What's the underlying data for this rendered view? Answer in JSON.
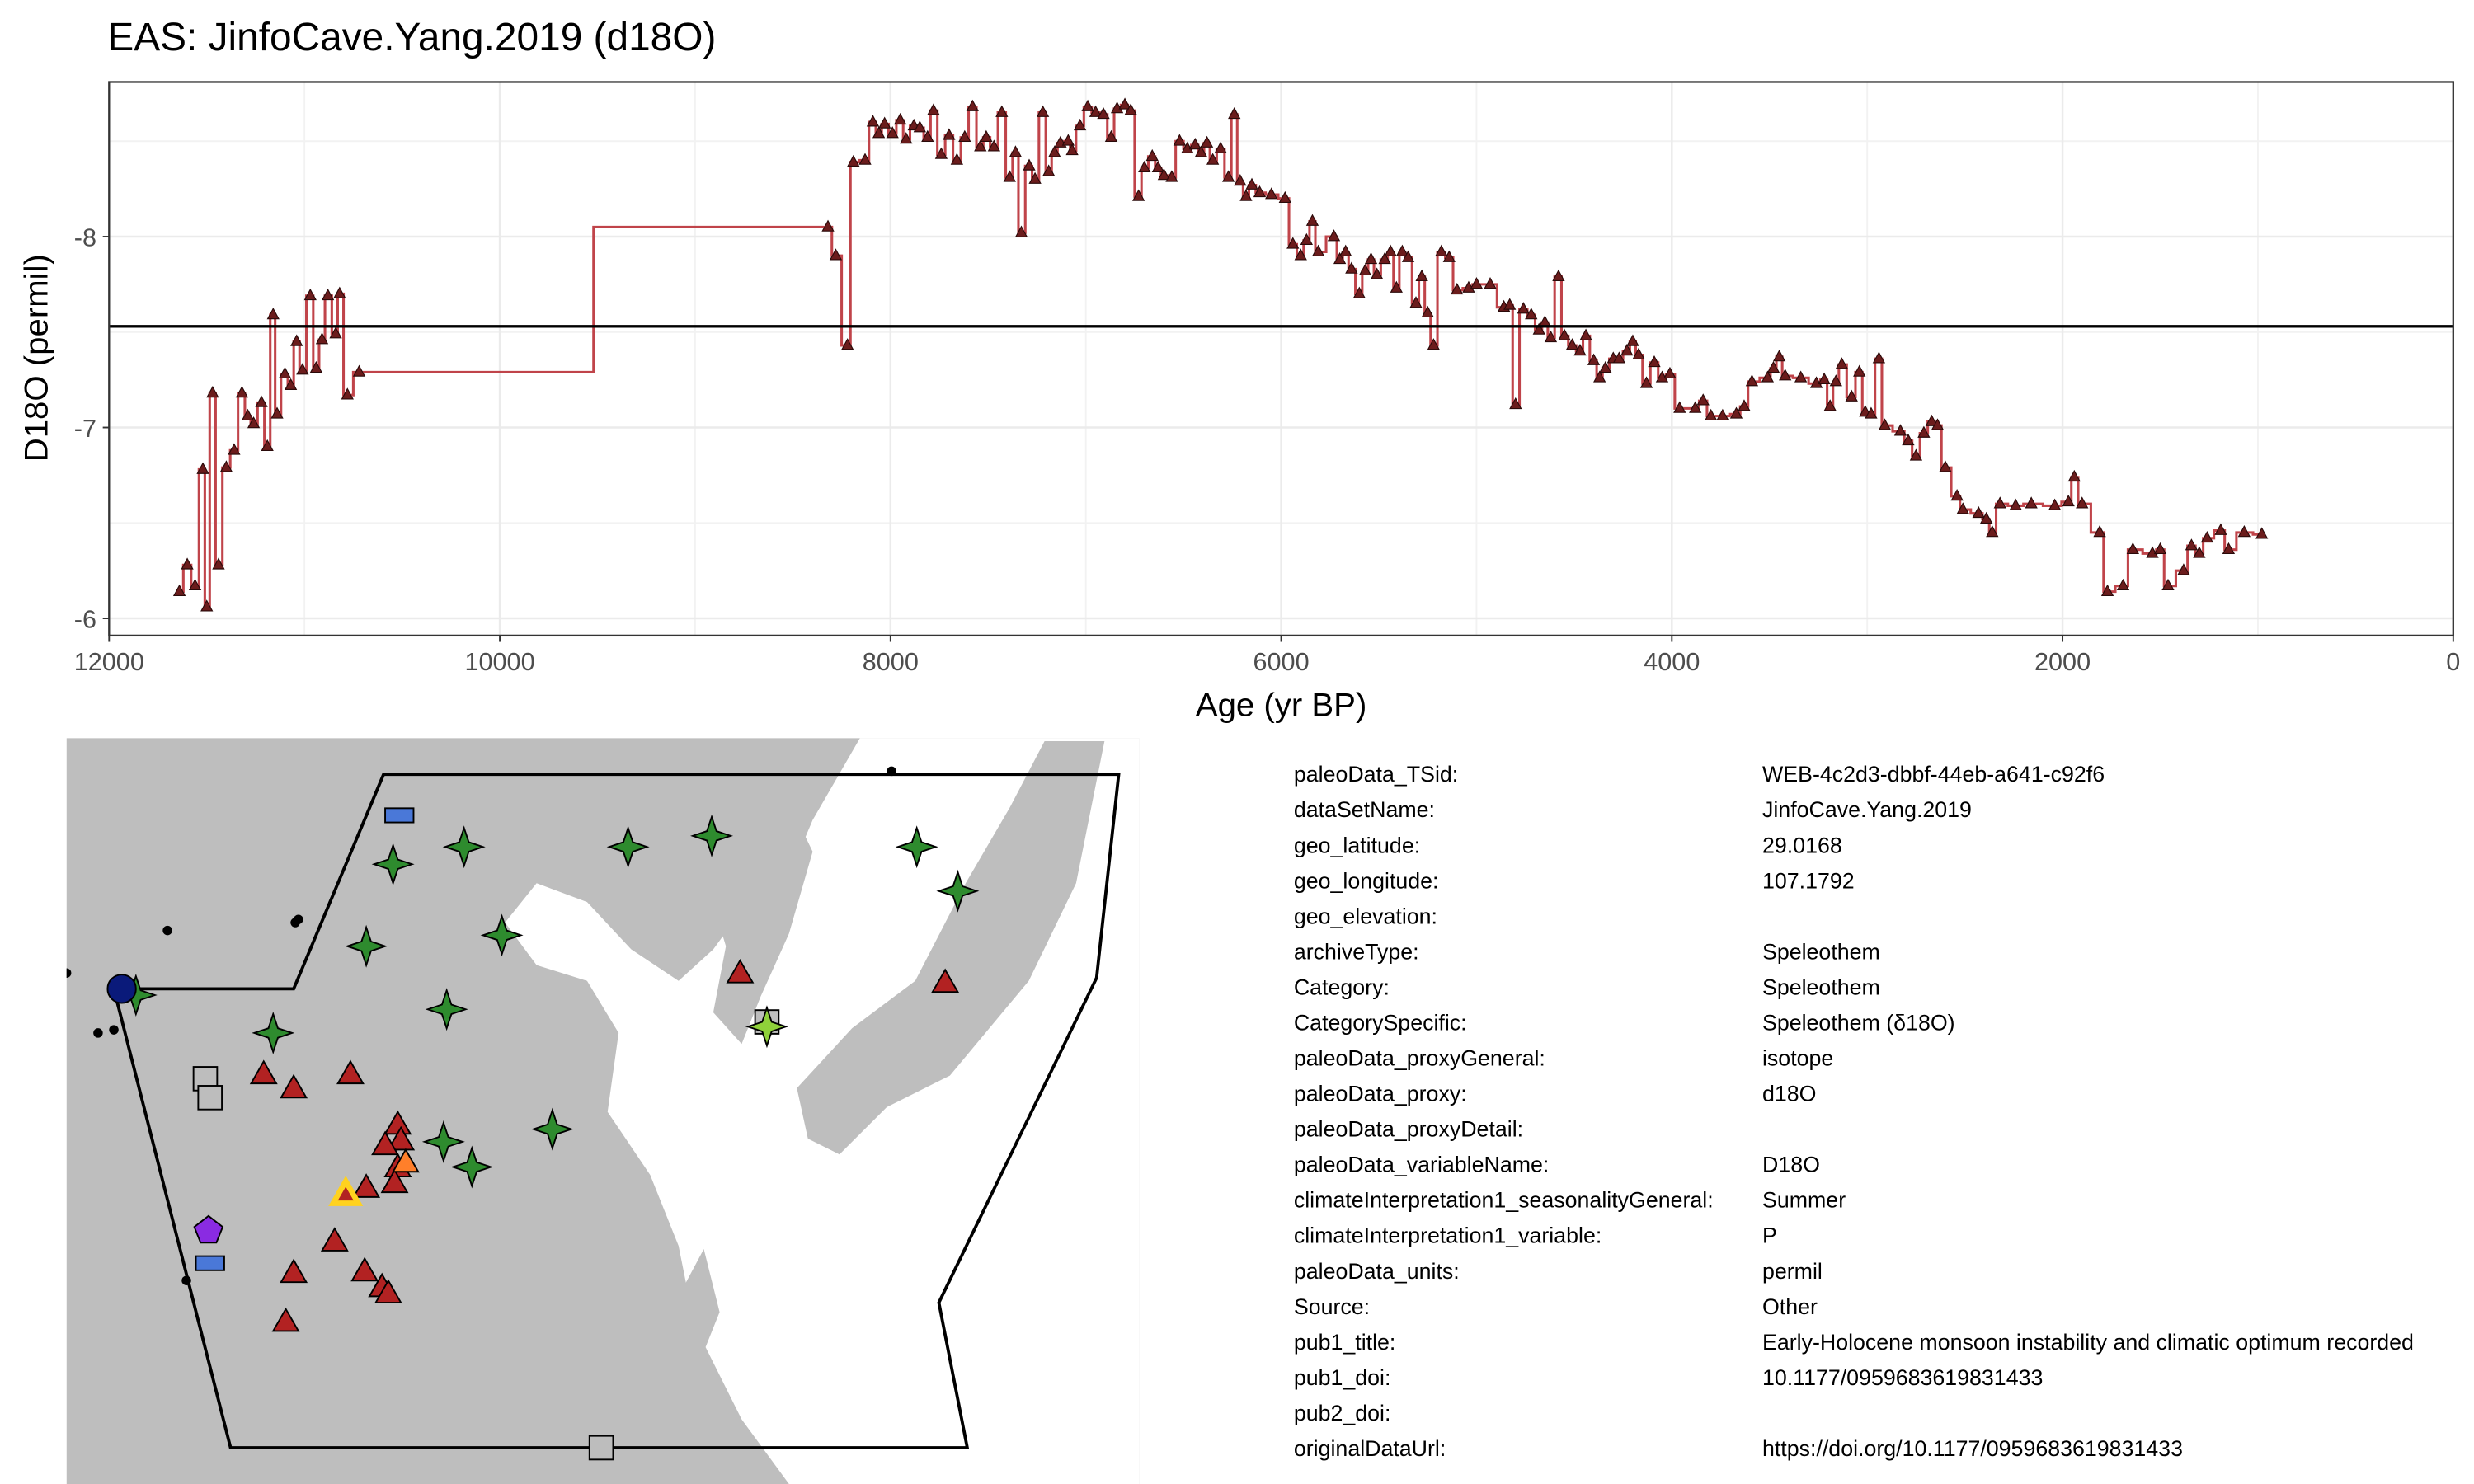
{
  "chart_data": {
    "type": "line",
    "title": "EAS: JinfoCave.Yang.2019 (d18O)",
    "xlabel": "Age (yr BP)",
    "ylabel": "D18O (permil)",
    "color": "#c0444a",
    "marker_color": "#6b1c1c",
    "hline": -7.53,
    "grid": true,
    "xlim": [
      12000,
      0
    ],
    "xticks": [
      12000,
      10000,
      8000,
      6000,
      4000,
      2000,
      0
    ],
    "ylim": [
      -5.91,
      -8.81
    ],
    "yticks": [
      -8,
      -7,
      -6
    ],
    "x": [
      11640,
      11600,
      11560,
      11520,
      11500,
      11470,
      11440,
      11400,
      11360,
      11320,
      11290,
      11260,
      11220,
      11190,
      11160,
      11140,
      11100,
      11070,
      11040,
      11010,
      10970,
      10940,
      10910,
      10880,
      10840,
      10820,
      10780,
      10720,
      8320,
      8280,
      8220,
      8190,
      8130,
      8090,
      8060,
      8030,
      7990,
      7950,
      7920,
      7880,
      7850,
      7810,
      7780,
      7740,
      7700,
      7660,
      7620,
      7580,
      7540,
      7510,
      7470,
      7430,
      7390,
      7360,
      7330,
      7290,
      7260,
      7220,
      7190,
      7160,
      7130,
      7090,
      7070,
      7030,
      6990,
      6950,
      6910,
      6870,
      6840,
      6800,
      6770,
      6730,
      6700,
      6660,
      6630,
      6600,
      6560,
      6520,
      6480,
      6440,
      6410,
      6380,
      6350,
      6310,
      6270,
      6240,
      6210,
      6180,
      6150,
      6110,
      6050,
      5980,
      5940,
      5900,
      5870,
      5840,
      5810,
      5730,
      5700,
      5670,
      5640,
      5600,
      5570,
      5540,
      5510,
      5470,
      5440,
      5410,
      5380,
      5350,
      5310,
      5280,
      5250,
      5220,
      5180,
      5140,
      5100,
      5040,
      5000,
      4930,
      4860,
      4830,
      4800,
      4760,
      4720,
      4680,
      4650,
      4620,
      4580,
      4550,
      4510,
      4470,
      4440,
      4400,
      4370,
      4340,
      4300,
      4270,
      4230,
      4200,
      4170,
      4130,
      4090,
      4050,
      4010,
      3960,
      3880,
      3840,
      3800,
      3740,
      3670,
      3630,
      3590,
      3510,
      3480,
      3450,
      3420,
      3340,
      3260,
      3220,
      3190,
      3160,
      3130,
      3080,
      3040,
      3010,
      2980,
      2940,
      2910,
      2830,
      2790,
      2750,
      2710,
      2670,
      2640,
      2600,
      2540,
      2510,
      2430,
      2390,
      2360,
      2320,
      2240,
      2160,
      2040,
      1970,
      1940,
      1900,
      1810,
      1770,
      1690,
      1640,
      1540,
      1500,
      1460,
      1380,
      1340,
      1300,
      1260,
      1190,
      1150,
      1070,
      980
    ],
    "values": [
      -6.14,
      -6.28,
      -6.17,
      -6.78,
      -6.06,
      -7.18,
      -6.28,
      -6.79,
      -6.88,
      -7.18,
      -7.06,
      -7.02,
      -7.13,
      -6.9,
      -7.59,
      -7.07,
      -7.28,
      -7.22,
      -7.45,
      -7.3,
      -7.69,
      -7.31,
      -7.46,
      -7.69,
      -7.49,
      -7.7,
      -7.17,
      -7.29,
      -8.05,
      -7.9,
      -7.43,
      -8.39,
      -8.4,
      -8.6,
      -8.54,
      -8.59,
      -8.54,
      -8.61,
      -8.51,
      -8.58,
      -8.57,
      -8.52,
      -8.66,
      -8.43,
      -8.53,
      -8.4,
      -8.52,
      -8.68,
      -8.47,
      -8.52,
      -8.47,
      -8.65,
      -8.31,
      -8.44,
      -8.02,
      -8.37,
      -8.3,
      -8.65,
      -8.34,
      -8.44,
      -8.49,
      -8.5,
      -8.45,
      -8.58,
      -8.68,
      -8.65,
      -8.64,
      -8.52,
      -8.67,
      -8.69,
      -8.66,
      -8.21,
      -8.36,
      -8.42,
      -8.36,
      -8.32,
      -8.31,
      -8.5,
      -8.46,
      -8.48,
      -8.44,
      -8.49,
      -8.4,
      -8.46,
      -8.31,
      -8.64,
      -8.29,
      -8.21,
      -8.27,
      -8.23,
      -8.22,
      -8.2,
      -7.96,
      -7.9,
      -7.98,
      -8.08,
      -7.92,
      -8.0,
      -7.88,
      -7.92,
      -7.83,
      -7.7,
      -7.82,
      -7.88,
      -7.8,
      -7.88,
      -7.92,
      -7.73,
      -7.92,
      -7.89,
      -7.65,
      -7.79,
      -7.6,
      -7.43,
      -7.92,
      -7.89,
      -7.72,
      -7.73,
      -7.75,
      -7.75,
      -7.63,
      -7.64,
      -7.12,
      -7.62,
      -7.59,
      -7.51,
      -7.55,
      -7.47,
      -7.79,
      -7.48,
      -7.43,
      -7.4,
      -7.48,
      -7.35,
      -7.26,
      -7.31,
      -7.36,
      -7.36,
      -7.4,
      -7.45,
      -7.38,
      -7.23,
      -7.34,
      -7.26,
      -7.28,
      -7.1,
      -7.1,
      -7.14,
      -7.06,
      -7.06,
      -7.07,
      -7.11,
      -7.24,
      -7.26,
      -7.31,
      -7.37,
      -7.27,
      -7.26,
      -7.23,
      -7.25,
      -7.11,
      -7.24,
      -7.33,
      -7.16,
      -7.29,
      -7.08,
      -7.07,
      -7.36,
      -7.01,
      -6.98,
      -6.93,
      -6.85,
      -6.97,
      -7.03,
      -7.01,
      -6.79,
      -6.64,
      -6.57,
      -6.55,
      -6.52,
      -6.45,
      -6.6,
      -6.59,
      -6.6,
      -6.59,
      -6.61,
      -6.74,
      -6.6,
      -6.45,
      -6.14,
      -6.17,
      -6.36,
      -6.34,
      -6.36,
      -6.17,
      -6.25,
      -6.38,
      -6.34,
      -6.42,
      -6.46,
      -6.36,
      -6.45,
      -6.44
    ]
  },
  "metadata": {
    "rows": [
      {
        "key": "paleoData_TSid:",
        "value": "WEB-4c2d3-dbbf-44eb-a641-c92f6"
      },
      {
        "key": "dataSetName:",
        "value": "JinfoCave.Yang.2019"
      },
      {
        "key": "geo_latitude:",
        "value": "29.0168"
      },
      {
        "key": "geo_longitude:",
        "value": "107.1792"
      },
      {
        "key": "geo_elevation:"
      },
      {
        "key": "archiveType:",
        "value": "Speleothem"
      },
      {
        "key": "Category:",
        "value": "Speleothem"
      },
      {
        "key": "CategorySpecific:",
        "value": "Speleothem (δ18O)"
      },
      {
        "key": "paleoData_proxyGeneral:",
        "value": "isotope"
      },
      {
        "key": "paleoData_proxy:",
        "value": "d18O"
      },
      {
        "key": "paleoData_proxyDetail:"
      },
      {
        "key": "paleoData_variableName:",
        "value": "D18O"
      },
      {
        "key": "climateInterpretation1_seasonalityGeneral:",
        "value": "Summer"
      },
      {
        "key": "climateInterpretation1_variable:",
        "value": "P"
      },
      {
        "key": "paleoData_units:",
        "value": "permil"
      },
      {
        "key": "Source:",
        "value": "Other"
      },
      {
        "key": "pub1_title:",
        "value": "Early-Holocene monsoon instability and climatic optimum recorded"
      },
      {
        "key": "pub1_doi:",
        "value": "10.1177/0959683619831433"
      },
      {
        "key": "pub2_doi:"
      },
      {
        "key": "originalDataUrl:",
        "value": "https://doi.org/10.1177/0959683619831433"
      }
    ]
  }
}
